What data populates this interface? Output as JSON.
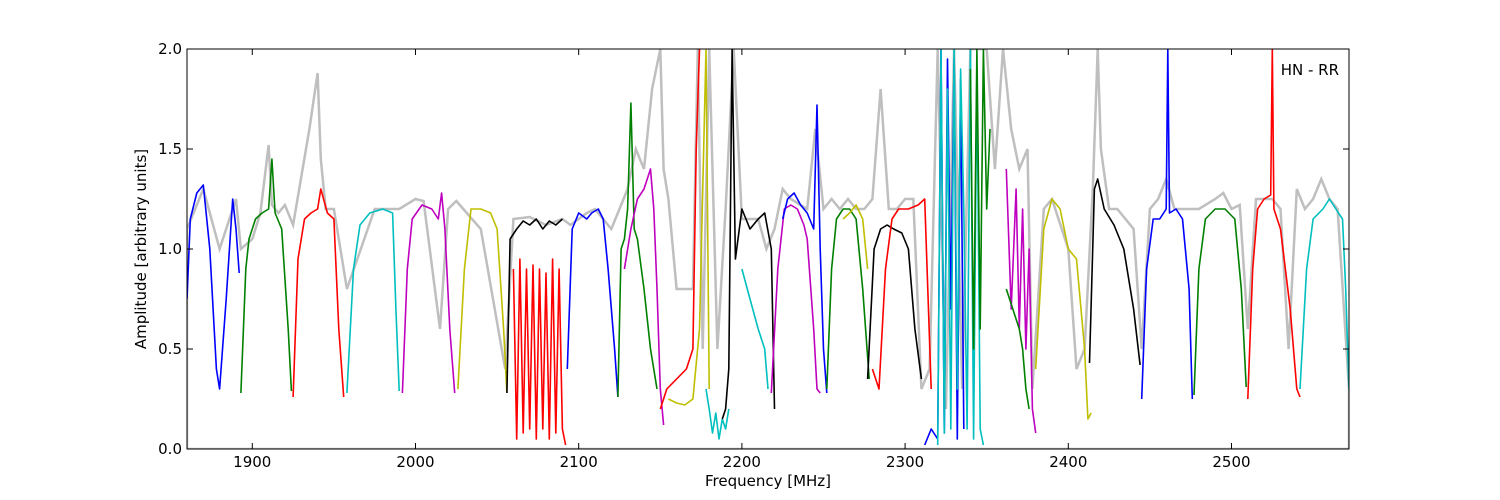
{
  "chart_data": {
    "type": "line",
    "title": "",
    "annotation": "HN - RR",
    "xlabel": "Frequency [MHz]",
    "ylabel": "Amplitude [arbitrary units]",
    "xlim": [
      1860,
      2572
    ],
    "ylim": [
      0.0,
      2.0
    ],
    "x_ticks": [
      1900,
      2000,
      2100,
      2200,
      2300,
      2400,
      2500
    ],
    "y_ticks": [
      0.0,
      0.5,
      1.0,
      1.5,
      2.0
    ],
    "x_tick_labels": [
      "1900",
      "2000",
      "2100",
      "2200",
      "2300",
      "2400",
      "2500"
    ],
    "y_tick_labels": [
      "0.0",
      "0.5",
      "1.0",
      "1.5",
      "2.0"
    ],
    "grid": false,
    "background_envelope": {
      "color": "#bfbfbf",
      "x": [
        1860,
        1870,
        1880,
        1890,
        1893,
        1900,
        1905,
        1910,
        1912,
        1914,
        1916,
        1920,
        1925,
        1935,
        1940,
        1942,
        1945,
        1950,
        1958,
        1975,
        1990,
        2000,
        2005,
        2015,
        2020,
        2025,
        2040,
        2055,
        2060,
        2070,
        2080,
        2090,
        2095,
        2105,
        2110,
        2120,
        2125,
        2130,
        2135,
        2140,
        2145,
        2150,
        2152,
        2155,
        2160,
        2165,
        2170,
        2173,
        2176,
        2180,
        2185,
        2190,
        2195,
        2200,
        2210,
        2215,
        2220,
        2225,
        2230,
        2240,
        2245,
        2250,
        2255,
        2260,
        2265,
        2270,
        2275,
        2280,
        2285,
        2290,
        2295,
        2300,
        2305,
        2310,
        2315,
        2320,
        2325,
        2330,
        2335,
        2340,
        2345,
        2350,
        2355,
        2360,
        2365,
        2370,
        2375,
        2378,
        2385,
        2390,
        2400,
        2405,
        2410,
        2415,
        2418,
        2420,
        2425,
        2430,
        2440,
        2445,
        2450,
        2455,
        2460,
        2465,
        2470,
        2475,
        2480,
        2490,
        2495,
        2500,
        2505,
        2510,
        2515,
        2525,
        2530,
        2535,
        2540,
        2545,
        2550,
        2555,
        2560,
        2565,
        2572
      ],
      "y": [
        1.1,
        1.3,
        1.0,
        1.25,
        1.0,
        1.05,
        1.18,
        1.52,
        1.22,
        1.2,
        1.18,
        1.22,
        1.12,
        1.6,
        1.88,
        1.45,
        1.2,
        1.2,
        0.8,
        1.2,
        1.2,
        1.25,
        1.24,
        0.6,
        1.2,
        1.24,
        1.1,
        0.4,
        1.15,
        1.16,
        1.12,
        1.15,
        1.12,
        1.18,
        1.2,
        1.1,
        1.2,
        1.3,
        1.5,
        1.4,
        1.8,
        2.0,
        1.4,
        1.25,
        0.8,
        0.8,
        0.8,
        2.0,
        0.5,
        2.0,
        0.5,
        1.2,
        2.0,
        1.15,
        1.15,
        1.0,
        1.1,
        1.3,
        1.25,
        1.2,
        1.6,
        1.2,
        1.25,
        1.2,
        1.25,
        1.2,
        1.2,
        1.25,
        1.8,
        1.2,
        1.2,
        1.25,
        1.25,
        0.3,
        0.4,
        2.0,
        0.2,
        2.0,
        0.3,
        2.0,
        2.0,
        2.0,
        1.4,
        2.0,
        1.6,
        1.4,
        1.5,
        0.3,
        1.2,
        1.25,
        1.0,
        0.4,
        0.5,
        1.3,
        2.0,
        1.5,
        1.2,
        1.2,
        1.1,
        0.5,
        1.2,
        1.25,
        1.35,
        1.2,
        1.2,
        1.2,
        1.2,
        1.25,
        1.28,
        1.2,
        1.22,
        0.6,
        1.25,
        1.25,
        1.2,
        0.5,
        1.3,
        1.2,
        1.25,
        1.35,
        1.25,
        1.2,
        0.3
      ]
    },
    "series": [
      {
        "color": "#0000ff",
        "x": [
          1860,
          1862,
          1866,
          1870,
          1874,
          1878,
          1880,
          1884,
          1888,
          1890,
          1892
        ],
        "y": [
          0.75,
          1.15,
          1.28,
          1.32,
          1.0,
          0.4,
          0.3,
          0.75,
          1.25,
          1.1,
          0.88
        ]
      },
      {
        "color": "#008000",
        "x": [
          1893,
          1896,
          1898,
          1902,
          1906,
          1910,
          1912,
          1914,
          1918,
          1922,
          1924
        ],
        "y": [
          0.28,
          0.9,
          1.05,
          1.15,
          1.18,
          1.2,
          1.45,
          1.18,
          1.1,
          0.6,
          0.29
        ]
      },
      {
        "color": "#ff0000",
        "x": [
          1925,
          1928,
          1932,
          1936,
          1940,
          1942,
          1946,
          1950,
          1953,
          1956
        ],
        "y": [
          0.26,
          0.95,
          1.15,
          1.18,
          1.2,
          1.3,
          1.18,
          1.15,
          0.6,
          0.26
        ]
      },
      {
        "color": "#00bfbf",
        "x": [
          1958,
          1962,
          1966,
          1972,
          1980,
          1986,
          1988,
          1990
        ],
        "y": [
          0.28,
          0.9,
          1.12,
          1.18,
          1.2,
          1.18,
          0.7,
          0.29
        ]
      },
      {
        "color": "#bf00bf",
        "x": [
          1992,
          1995,
          1998,
          2004,
          2010,
          2014,
          2016,
          2018,
          2021,
          2024
        ],
        "y": [
          0.28,
          0.9,
          1.15,
          1.22,
          1.2,
          1.15,
          1.28,
          1.1,
          0.6,
          0.28
        ]
      },
      {
        "color": "#bfbf00",
        "x": [
          2026,
          2030,
          2034,
          2040,
          2046,
          2050,
          2054,
          2056
        ],
        "y": [
          0.3,
          0.9,
          1.2,
          1.2,
          1.18,
          1.1,
          0.6,
          0.28
        ]
      },
      {
        "color": "#000000",
        "x": [
          2056,
          2058,
          2062,
          2066,
          2070,
          2074,
          2078,
          2082,
          2086,
          2090
        ],
        "y": [
          0.28,
          1.05,
          1.1,
          1.14,
          1.12,
          1.15,
          1.1,
          1.14,
          1.12,
          1.15
        ]
      },
      {
        "color": "#ff0000",
        "x": [
          2060,
          2062,
          2064,
          2066,
          2068,
          2070,
          2072,
          2074,
          2076,
          2078,
          2080,
          2082,
          2084,
          2086,
          2088,
          2090,
          2092
        ],
        "y": [
          0.9,
          0.05,
          0.95,
          0.08,
          0.9,
          0.1,
          0.92,
          0.05,
          0.9,
          0.1,
          0.88,
          0.05,
          0.95,
          0.08,
          0.9,
          0.1,
          0.02
        ]
      },
      {
        "color": "#0000ff",
        "x": [
          2093,
          2096,
          2100,
          2105,
          2108,
          2112,
          2115,
          2118,
          2122,
          2124
        ],
        "y": [
          0.4,
          1.1,
          1.18,
          1.15,
          1.18,
          1.2,
          1.15,
          0.9,
          0.5,
          0.26
        ]
      },
      {
        "color": "#008000",
        "x": [
          2124,
          2126,
          2128,
          2130,
          2132,
          2134,
          2136,
          2140,
          2144,
          2148
        ],
        "y": [
          0.26,
          1.0,
          1.05,
          1.2,
          1.73,
          1.1,
          1.05,
          0.8,
          0.5,
          0.3
        ]
      },
      {
        "color": "#bf00bf",
        "x": [
          2128,
          2132,
          2136,
          2140,
          2144,
          2146,
          2148,
          2150,
          2152
        ],
        "y": [
          0.9,
          1.1,
          1.25,
          1.3,
          1.4,
          1.2,
          0.8,
          0.3,
          0.12
        ]
      },
      {
        "color": "#ff0000",
        "x": [
          2150,
          2154,
          2160,
          2166,
          2170,
          2172,
          2174
        ],
        "y": [
          0.2,
          0.3,
          0.35,
          0.4,
          0.5,
          1.5,
          2.0
        ]
      },
      {
        "color": "#bfbf00",
        "x": [
          2155,
          2160,
          2165,
          2170,
          2174,
          2178,
          2180
        ],
        "y": [
          0.25,
          0.23,
          0.22,
          0.25,
          0.6,
          2.0,
          0.3
        ]
      },
      {
        "color": "#00bfbf",
        "x": [
          2178,
          2180,
          2182,
          2184,
          2186,
          2188,
          2190,
          2192
        ],
        "y": [
          0.3,
          0.2,
          0.08,
          0.18,
          0.05,
          0.15,
          0.1,
          0.2
        ]
      },
      {
        "color": "#000000",
        "x": [
          2188,
          2190,
          2192,
          2194,
          2196,
          2200,
          2205,
          2210,
          2214,
          2218,
          2220
        ],
        "y": [
          0.15,
          0.2,
          0.4,
          2.0,
          0.95,
          1.2,
          1.1,
          1.15,
          1.18,
          1.0,
          0.2
        ]
      },
      {
        "color": "#00bfbf",
        "x": [
          2200,
          2205,
          2210,
          2214,
          2216
        ],
        "y": [
          0.9,
          0.75,
          0.6,
          0.5,
          0.3
        ]
      },
      {
        "color": "#bf00bf",
        "x": [
          2218,
          2222,
          2226,
          2230,
          2234,
          2238,
          2240,
          2244,
          2246,
          2248
        ],
        "y": [
          0.28,
          0.9,
          1.2,
          1.22,
          1.2,
          1.12,
          1.05,
          0.6,
          0.3,
          0.28
        ]
      },
      {
        "color": "#0000ff",
        "x": [
          2225,
          2228,
          2232,
          2236,
          2240,
          2244,
          2246,
          2248,
          2250,
          2252
        ],
        "y": [
          1.15,
          1.25,
          1.28,
          1.22,
          1.18,
          1.1,
          1.72,
          1.0,
          0.5,
          0.28
        ]
      },
      {
        "color": "#008000",
        "x": [
          2252,
          2255,
          2258,
          2262,
          2266,
          2270,
          2274,
          2278
        ],
        "y": [
          0.3,
          0.9,
          1.15,
          1.2,
          1.2,
          1.15,
          0.8,
          0.35
        ]
      },
      {
        "color": "#bfbf00",
        "x": [
          2262,
          2266,
          2270,
          2274,
          2277
        ],
        "y": [
          1.15,
          1.18,
          1.22,
          1.15,
          0.9
        ]
      },
      {
        "color": "#000000",
        "x": [
          2277,
          2281,
          2285,
          2289,
          2293,
          2298,
          2302,
          2306,
          2310
        ],
        "y": [
          0.35,
          1.0,
          1.1,
          1.12,
          1.1,
          1.08,
          1.0,
          0.6,
          0.35
        ]
      },
      {
        "color": "#ff0000",
        "x": [
          2280,
          2284,
          2288,
          2292,
          2296,
          2302,
          2308,
          2312,
          2316
        ],
        "y": [
          0.4,
          0.3,
          0.9,
          1.15,
          1.2,
          1.2,
          1.22,
          1.25,
          0.3
        ]
      },
      {
        "color": "#0000ff",
        "x": [
          2312,
          2316,
          2320,
          2322,
          2324,
          2326,
          2328,
          2330,
          2332,
          2334,
          2336
        ],
        "y": [
          0.02,
          0.1,
          0.05,
          2.0,
          0.08,
          1.95,
          0.7,
          1.95,
          0.05,
          1.85,
          0.1
        ]
      },
      {
        "color": "#00bfbf",
        "x": [
          2320,
          2322,
          2324,
          2326,
          2328,
          2330,
          2332,
          2334,
          2336,
          2338,
          2340,
          2342,
          2344,
          2346,
          2348
        ],
        "y": [
          0.02,
          2.0,
          0.08,
          1.8,
          0.1,
          2.0,
          0.3,
          1.9,
          1.2,
          0.1,
          2.0,
          0.05,
          1.9,
          0.1,
          0.02
        ]
      },
      {
        "color": "#008000",
        "x": [
          2340,
          2342,
          2344,
          2346,
          2348,
          2350,
          2352
        ],
        "y": [
          1.9,
          0.5,
          2.0,
          0.6,
          2.0,
          1.2,
          1.6
        ]
      },
      {
        "color": "#bf00bf",
        "x": [
          2362,
          2365,
          2368,
          2370,
          2372,
          2374,
          2376,
          2378,
          2380
        ],
        "y": [
          1.4,
          0.7,
          1.3,
          0.6,
          1.2,
          0.5,
          1.0,
          0.2,
          0.08
        ]
      },
      {
        "color": "#008000",
        "x": [
          2362,
          2366,
          2370,
          2372,
          2374,
          2376
        ],
        "y": [
          0.8,
          0.7,
          0.6,
          0.5,
          0.3,
          0.2
        ]
      },
      {
        "color": "#bfbf00",
        "x": [
          2380,
          2385,
          2390,
          2395,
          2400,
          2405,
          2410,
          2412,
          2414
        ],
        "y": [
          0.4,
          1.1,
          1.25,
          1.2,
          1.0,
          0.95,
          0.5,
          0.15,
          0.18
        ]
      },
      {
        "color": "#000000",
        "x": [
          2413,
          2416,
          2418,
          2422,
          2428,
          2434,
          2440,
          2444
        ],
        "y": [
          0.43,
          1.3,
          1.35,
          1.2,
          1.12,
          1.0,
          0.7,
          0.42
        ]
      },
      {
        "color": "#0000ff",
        "x": [
          2445,
          2448,
          2452,
          2456,
          2460,
          2461,
          2462,
          2466,
          2470,
          2474,
          2476
        ],
        "y": [
          0.25,
          0.9,
          1.15,
          1.15,
          1.2,
          2.0,
          1.18,
          1.2,
          1.15,
          0.8,
          0.25
        ]
      },
      {
        "color": "#008000",
        "x": [
          2477,
          2480,
          2484,
          2490,
          2496,
          2502,
          2506,
          2509
        ],
        "y": [
          0.27,
          0.9,
          1.15,
          1.2,
          1.2,
          1.15,
          0.8,
          0.31
        ]
      },
      {
        "color": "#ff0000",
        "x": [
          2510,
          2513,
          2516,
          2520,
          2524,
          2525,
          2526,
          2530,
          2536,
          2540,
          2542
        ],
        "y": [
          0.25,
          0.9,
          1.2,
          1.25,
          1.27,
          2.0,
          1.2,
          1.1,
          0.7,
          0.3,
          0.26
        ]
      },
      {
        "color": "#00bfbf",
        "x": [
          2542,
          2546,
          2550,
          2556,
          2560,
          2564,
          2568,
          2570,
          2572
        ],
        "y": [
          0.3,
          0.9,
          1.15,
          1.2,
          1.25,
          1.2,
          1.15,
          0.8,
          0.3
        ]
      }
    ]
  }
}
